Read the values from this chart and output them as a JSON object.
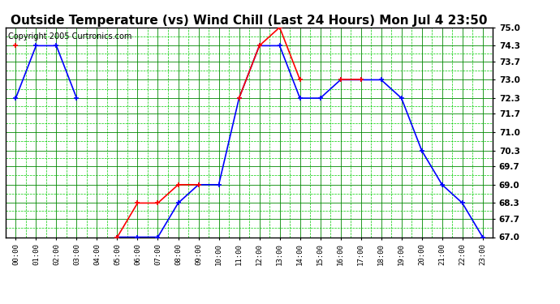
{
  "title": "Outside Temperature (vs) Wind Chill (Last 24 Hours) Mon Jul 4 23:50",
  "copyright": "Copyright 2005 Curtronics.com",
  "hours": [
    0,
    1,
    2,
    3,
    4,
    5,
    6,
    7,
    8,
    9,
    10,
    11,
    12,
    13,
    14,
    15,
    16,
    17,
    18,
    19,
    20,
    21,
    22,
    23
  ],
  "temp": [
    72.3,
    74.3,
    74.3,
    72.3,
    null,
    67.0,
    67.0,
    67.0,
    68.3,
    69.0,
    69.0,
    72.3,
    74.3,
    74.3,
    72.3,
    72.3,
    73.0,
    73.0,
    73.0,
    72.3,
    70.3,
    69.0,
    68.3,
    67.0
  ],
  "wind_chill": [
    74.3,
    null,
    null,
    null,
    null,
    67.0,
    68.3,
    68.3,
    69.0,
    69.0,
    null,
    72.3,
    74.3,
    75.0,
    73.0,
    null,
    73.0,
    73.0,
    null,
    null,
    null,
    null,
    null,
    null
  ],
  "ylim_min": 67.0,
  "ylim_max": 75.0,
  "yticks": [
    75.0,
    74.3,
    73.7,
    73.0,
    72.3,
    71.7,
    71.0,
    70.3,
    69.7,
    69.0,
    68.3,
    67.7,
    67.0
  ],
  "temp_color": "#0000ff",
  "wind_chill_color": "#ff0000",
  "bg_color": "#ffffff",
  "grid_solid_color": "#008800",
  "grid_dash_color": "#00cc00",
  "title_fontsize": 11,
  "copyright_fontsize": 7
}
